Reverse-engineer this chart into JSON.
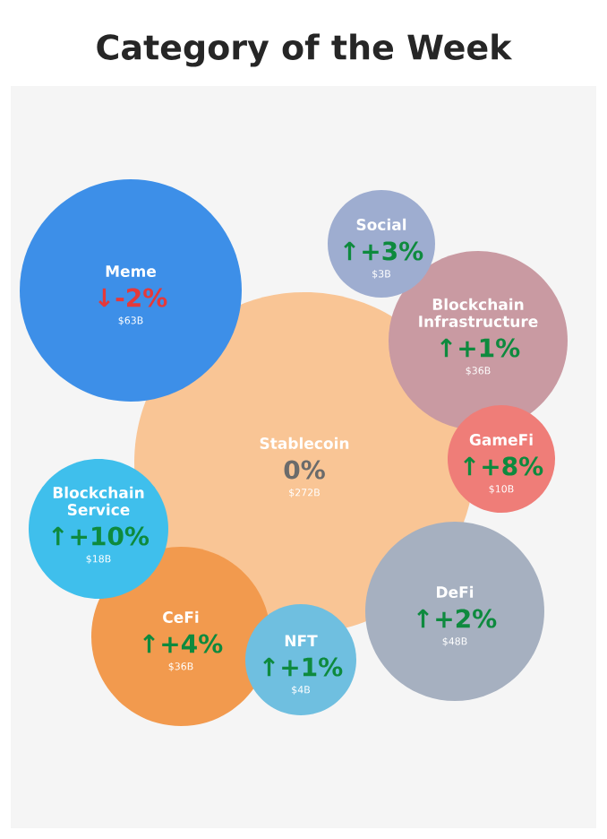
{
  "chart_data": {
    "type": "other",
    "title": "Category of the Week",
    "categories": [
      "Meme",
      "Social",
      "Blockchain Infrastructure",
      "Stablecoin",
      "GameFi",
      "Blockchain Service",
      "DeFi",
      "CeFi",
      "NFT"
    ],
    "values": [
      -2,
      3,
      1,
      0,
      8,
      10,
      2,
      4,
      1
    ],
    "value_labels": [
      "↓-2%",
      "↑+3%",
      "↑+1%",
      "0%",
      "↑+8%",
      "↑+10%",
      "↑+2%",
      "↑+4%",
      "↑+1%"
    ],
    "colors": [
      "#3d8fe8",
      "#9eadd0",
      "#c99aa2",
      "#f9c595",
      "#ef7d78",
      "#3fbfec",
      "#a6b0c0",
      "#f29a4e",
      "#6fbfe0"
    ],
    "annotations": [
      "$63B",
      "$3B",
      "$36B",
      "$272B",
      "$10B",
      "$18B",
      "$48B",
      "$36B",
      "$4B"
    ]
  }
}
